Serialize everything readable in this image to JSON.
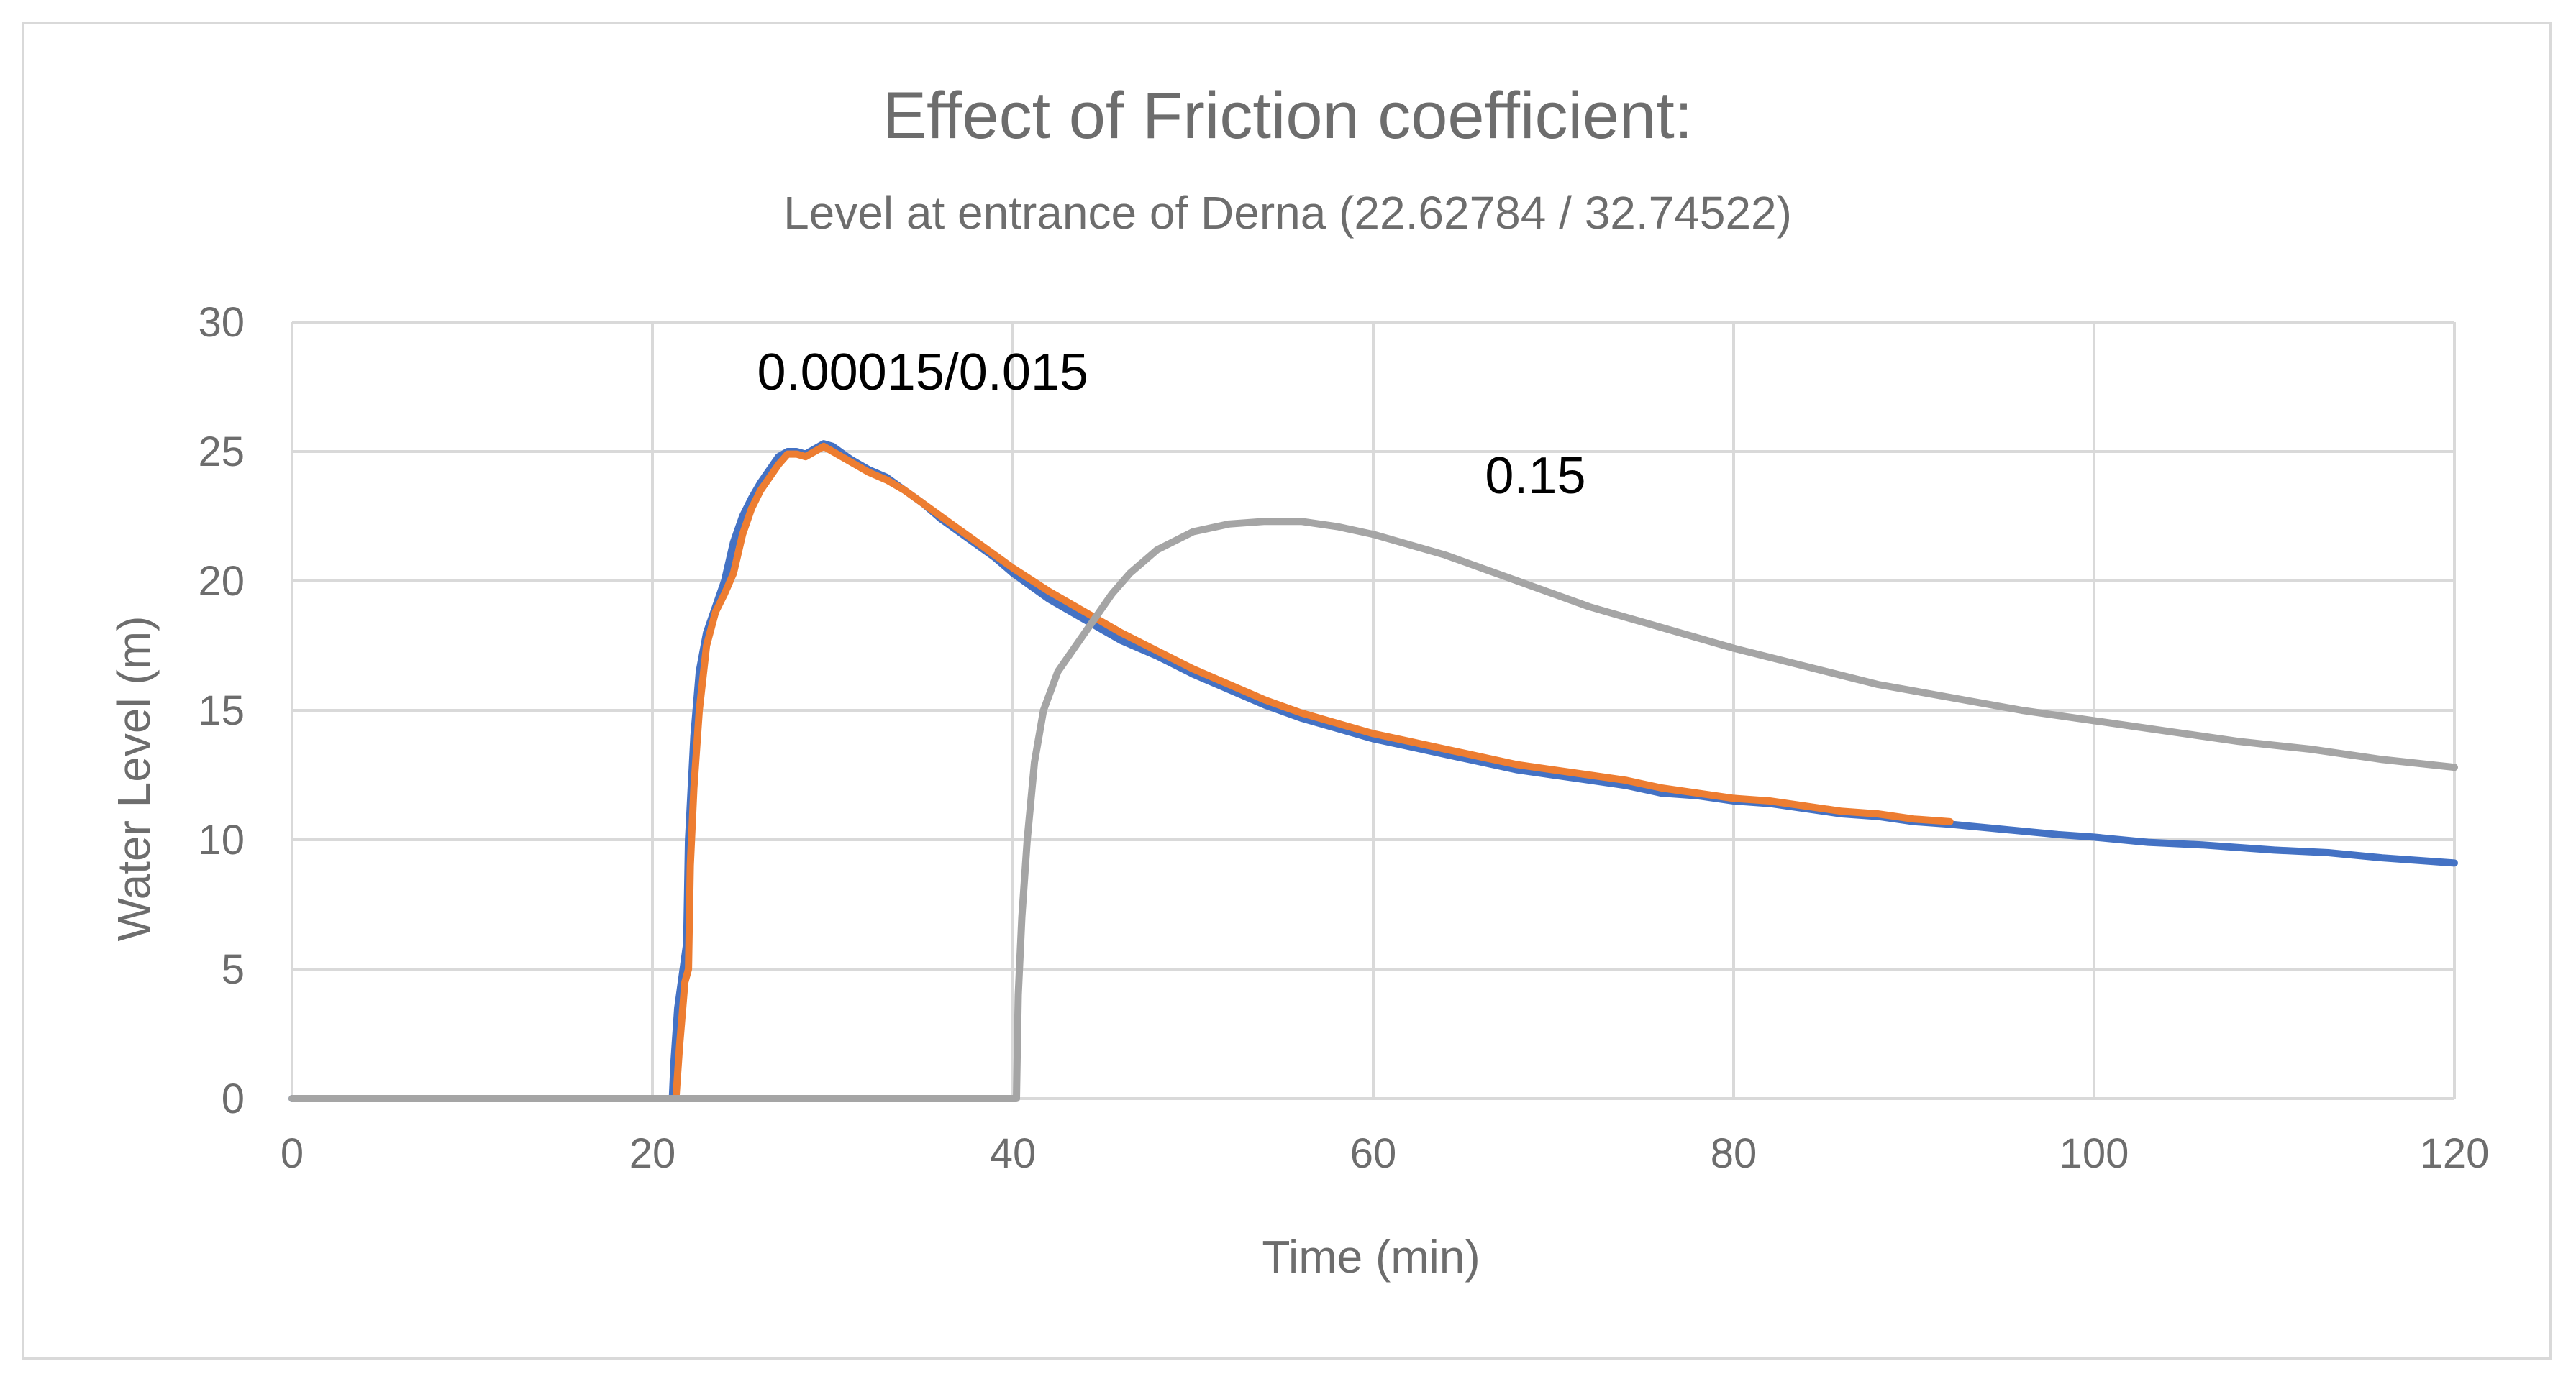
{
  "chart_data": {
    "type": "line",
    "title": "Effect of Friction coefficient:",
    "subtitle": "Level at entrance of Derna  (22.62784 / 32.74522)",
    "xlabel": "Time (min)",
    "ylabel": "Water Level (m)",
    "xlim": [
      0,
      120
    ],
    "ylim": [
      0,
      30
    ],
    "x_ticks": [
      "0",
      "20",
      "40",
      "60",
      "80",
      "100",
      "120"
    ],
    "y_ticks": [
      "0",
      "5",
      "10",
      "15",
      "20",
      "25",
      "30"
    ],
    "grid": true,
    "legend": "none",
    "annotations": [
      {
        "text": "0.00015/0.015",
        "x": 35,
        "y": 28.0
      },
      {
        "text": "0.15",
        "x": 69,
        "y": 24.0
      }
    ],
    "series": [
      {
        "color": "#4472c4",
        "points": [
          [
            0,
            0
          ],
          [
            21.1,
            0
          ],
          [
            21.2,
            1.5
          ],
          [
            21.4,
            3.5
          ],
          [
            21.7,
            5
          ],
          [
            21.9,
            6
          ],
          [
            22,
            10
          ],
          [
            22.3,
            14
          ],
          [
            22.6,
            16.5
          ],
          [
            23,
            18
          ],
          [
            23.5,
            19
          ],
          [
            24,
            20
          ],
          [
            24.5,
            21.5
          ],
          [
            25,
            22.5
          ],
          [
            25.5,
            23.2
          ],
          [
            26,
            23.8
          ],
          [
            26.5,
            24.3
          ],
          [
            27,
            24.8
          ],
          [
            27.5,
            25
          ],
          [
            28,
            25
          ],
          [
            28.5,
            24.9
          ],
          [
            29,
            25.1
          ],
          [
            29.5,
            25.3
          ],
          [
            30,
            25.2
          ],
          [
            31,
            24.7
          ],
          [
            32,
            24.3
          ],
          [
            33,
            24
          ],
          [
            34,
            23.5
          ],
          [
            35,
            23
          ],
          [
            36,
            22.4
          ],
          [
            37,
            21.9
          ],
          [
            38,
            21.4
          ],
          [
            39,
            20.9
          ],
          [
            40,
            20.3
          ],
          [
            42,
            19.3
          ],
          [
            44,
            18.5
          ],
          [
            46,
            17.7
          ],
          [
            48,
            17.1
          ],
          [
            50,
            16.4
          ],
          [
            52,
            15.8
          ],
          [
            54,
            15.2
          ],
          [
            56,
            14.7
          ],
          [
            58,
            14.3
          ],
          [
            60,
            13.9
          ],
          [
            62,
            13.6
          ],
          [
            64,
            13.3
          ],
          [
            66,
            13
          ],
          [
            68,
            12.7
          ],
          [
            70,
            12.5
          ],
          [
            72,
            12.3
          ],
          [
            74,
            12.1
          ],
          [
            76,
            11.8
          ],
          [
            78,
            11.7
          ],
          [
            80,
            11.5
          ],
          [
            82,
            11.4
          ],
          [
            84,
            11.2
          ],
          [
            86,
            11
          ],
          [
            88,
            10.9
          ],
          [
            90,
            10.7
          ],
          [
            92,
            10.6
          ],
          [
            95,
            10.4
          ],
          [
            98,
            10.2
          ],
          [
            100,
            10.1
          ],
          [
            103,
            9.9
          ],
          [
            106,
            9.8
          ],
          [
            110,
            9.6
          ],
          [
            113,
            9.5
          ],
          [
            116,
            9.3
          ],
          [
            120,
            9.1
          ]
        ]
      },
      {
        "color": "#ed7d31",
        "points": [
          [
            21.3,
            0
          ],
          [
            21.5,
            2
          ],
          [
            21.8,
            4.5
          ],
          [
            22,
            5
          ],
          [
            22.1,
            9
          ],
          [
            22.3,
            12
          ],
          [
            22.6,
            15
          ],
          [
            23,
            17.5
          ],
          [
            23.5,
            18.8
          ],
          [
            24,
            19.5
          ],
          [
            24.5,
            20.3
          ],
          [
            25,
            21.8
          ],
          [
            25.5,
            22.8
          ],
          [
            26,
            23.5
          ],
          [
            26.5,
            24
          ],
          [
            27,
            24.5
          ],
          [
            27.5,
            24.9
          ],
          [
            28,
            24.9
          ],
          [
            28.5,
            24.8
          ],
          [
            29,
            25
          ],
          [
            29.5,
            25.2
          ],
          [
            30,
            25
          ],
          [
            31,
            24.6
          ],
          [
            32,
            24.2
          ],
          [
            33,
            23.9
          ],
          [
            34,
            23.5
          ],
          [
            35,
            23
          ],
          [
            36,
            22.5
          ],
          [
            37,
            22
          ],
          [
            38,
            21.5
          ],
          [
            39,
            21
          ],
          [
            40,
            20.5
          ],
          [
            42,
            19.6
          ],
          [
            44,
            18.8
          ],
          [
            46,
            18
          ],
          [
            48,
            17.3
          ],
          [
            50,
            16.6
          ],
          [
            52,
            16
          ],
          [
            54,
            15.4
          ],
          [
            56,
            14.9
          ],
          [
            58,
            14.5
          ],
          [
            60,
            14.1
          ],
          [
            62,
            13.8
          ],
          [
            64,
            13.5
          ],
          [
            66,
            13.2
          ],
          [
            68,
            12.9
          ],
          [
            70,
            12.7
          ],
          [
            72,
            12.5
          ],
          [
            74,
            12.3
          ],
          [
            76,
            12
          ],
          [
            78,
            11.8
          ],
          [
            80,
            11.6
          ],
          [
            82,
            11.5
          ],
          [
            84,
            11.3
          ],
          [
            86,
            11.1
          ],
          [
            88,
            11
          ],
          [
            90,
            10.8
          ],
          [
            92,
            10.7
          ]
        ]
      },
      {
        "color": "#a5a5a5",
        "points": [
          [
            0,
            0
          ],
          [
            40.2,
            0
          ],
          [
            40.3,
            4
          ],
          [
            40.5,
            7
          ],
          [
            40.8,
            10
          ],
          [
            41.2,
            13
          ],
          [
            41.7,
            15
          ],
          [
            42.5,
            16.5
          ],
          [
            43.5,
            17.5
          ],
          [
            44.5,
            18.5
          ],
          [
            45.5,
            19.5
          ],
          [
            46.5,
            20.3
          ],
          [
            48,
            21.2
          ],
          [
            50,
            21.9
          ],
          [
            52,
            22.2
          ],
          [
            54,
            22.3
          ],
          [
            56,
            22.3
          ],
          [
            58,
            22.1
          ],
          [
            60,
            21.8
          ],
          [
            62,
            21.4
          ],
          [
            64,
            21
          ],
          [
            66,
            20.5
          ],
          [
            68,
            20
          ],
          [
            70,
            19.5
          ],
          [
            72,
            19
          ],
          [
            74,
            18.6
          ],
          [
            76,
            18.2
          ],
          [
            78,
            17.8
          ],
          [
            80,
            17.4
          ],
          [
            84,
            16.7
          ],
          [
            88,
            16
          ],
          [
            92,
            15.5
          ],
          [
            96,
            15
          ],
          [
            100,
            14.6
          ],
          [
            104,
            14.2
          ],
          [
            108,
            13.8
          ],
          [
            112,
            13.5
          ],
          [
            116,
            13.1
          ],
          [
            120,
            12.8
          ]
        ]
      }
    ]
  }
}
